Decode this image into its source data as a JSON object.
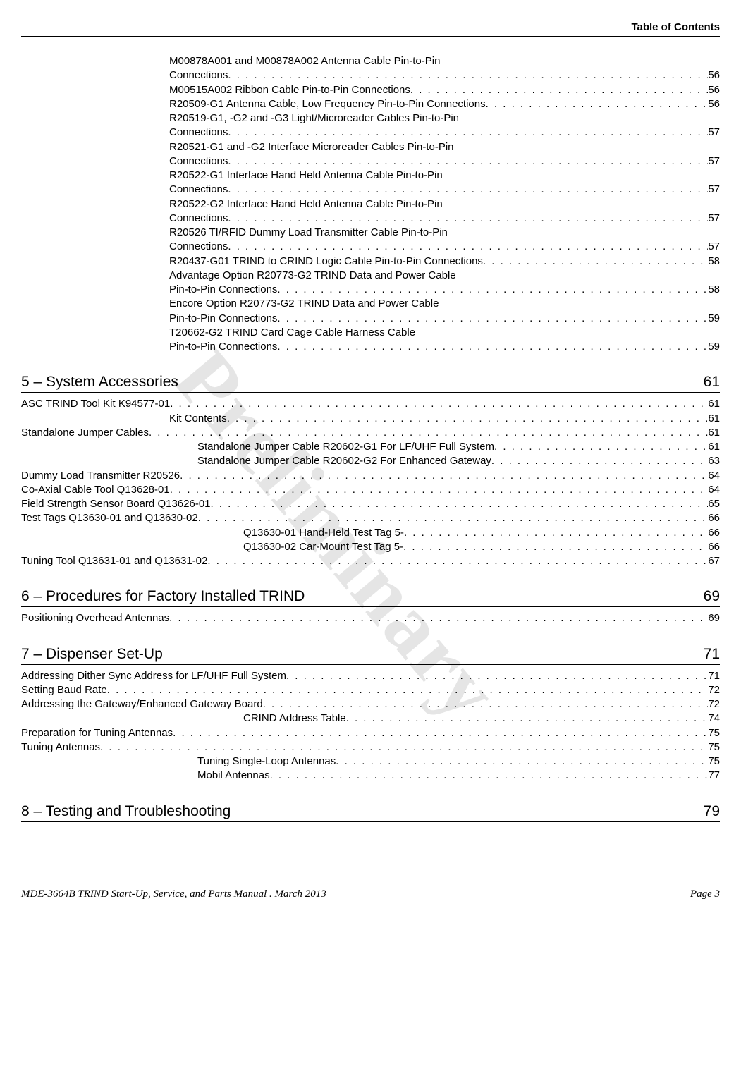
{
  "header": {
    "right": "Table of Contents"
  },
  "watermark": "Preliminary",
  "topEntries": [
    {
      "label": "M00878A001 and M00878A002 Antenna Cable Pin-to-Pin Connections",
      "page": "56",
      "wrap": true
    },
    {
      "label": "M00515A002 Ribbon Cable Pin-to-Pin Connections",
      "page": "56"
    },
    {
      "label": "R20509-G1 Antenna Cable, Low Frequency Pin-to-Pin Connections",
      "page": "56"
    },
    {
      "label": "R20519-G1, -G2 and -G3 Light/Microreader Cables Pin-to-Pin Connections",
      "page": "57",
      "wrap": true
    },
    {
      "label": "R20521-G1 and -G2 Interface Microreader Cables Pin-to-Pin Connections",
      "page": "57",
      "wrap": true
    },
    {
      "label": "R20522-G1 Interface Hand Held Antenna Cable Pin-to-Pin Connections",
      "page": "57",
      "wrap": true
    },
    {
      "label": "R20522-G2 Interface Hand Held Antenna Cable Pin-to-Pin Connections",
      "page": "57",
      "wrap": true
    },
    {
      "label": "R20526 TI/RFID Dummy Load Transmitter Cable Pin-to-Pin Connections",
      "page": "57",
      "wrap": true
    },
    {
      "label": "R20437-G01 TRIND to CRIND Logic Cable Pin-to-Pin Connections ",
      "page": "58"
    },
    {
      "label": "Advantage Option R20773-G2 TRIND Data and Power Cable Pin-to-Pin Connections ",
      "page": "58",
      "wrap": true
    },
    {
      "label": "Encore Option R20773-G2 TRIND Data and Power Cable Pin-to-Pin Connections ",
      "page": "59",
      "wrap": true
    },
    {
      "label": "T20662-G2 TRIND Card Cage Cable Harness Cable Pin-to-Pin Connections",
      "page": "59",
      "wrap": true
    }
  ],
  "sections": [
    {
      "title": "5 – System Accessories",
      "page": "61",
      "entries": [
        {
          "label": "ASC TRIND Tool Kit K94577-01",
          "page": "61",
          "indent": 0
        },
        {
          "label": "Kit Contents",
          "page": "61",
          "indent": 1
        },
        {
          "label": "Standalone Jumper Cables",
          "page": "61",
          "indent": 0
        },
        {
          "label": "Standalone Jumper Cable R20602-G1 For LF/UHF Full System ",
          "page": "61",
          "indent": 2
        },
        {
          "label": "Standalone Jumper Cable R20602-G2 For Enhanced Gateway",
          "page": "63",
          "indent": 2
        },
        {
          "label": "Dummy Load Transmitter R20526 ",
          "page": "64",
          "indent": 0
        },
        {
          "label": "Co-Axial Cable Tool Q13628-01",
          "page": "64",
          "indent": 0
        },
        {
          "label": "Field Strength Sensor Board Q13626-01 ",
          "page": "65",
          "indent": 0
        },
        {
          "label": "Test Tags Q13630-01 and Q13630-02",
          "page": "66",
          "indent": 0
        },
        {
          "label": "Q13630-01 Hand-Held Test Tag 5-",
          "page": "66",
          "indent": 3
        },
        {
          "label": "Q13630-02 Car-Mount Test Tag 5-",
          "page": "66",
          "indent": 3
        },
        {
          "label": "Tuning Tool Q13631-01 and Q13631-02",
          "page": "67",
          "indent": 0
        }
      ]
    },
    {
      "title": "6 – Procedures for Factory Installed TRIND",
      "page": "69",
      "entries": [
        {
          "label": "Positioning Overhead Antennas ",
          "page": "69",
          "indent": 0
        }
      ]
    },
    {
      "title": "7 – Dispenser Set-Up",
      "page": "71",
      "entries": [
        {
          "label": "Addressing Dither Sync Address for LF/UHF Full System ",
          "page": "71",
          "indent": 0
        },
        {
          "label": "Setting Baud Rate",
          "page": "72",
          "indent": 0
        },
        {
          "label": "Addressing the Gateway/Enhanced Gateway Board ",
          "page": "72",
          "indent": 0
        },
        {
          "label": "CRIND Address Table",
          "page": "74",
          "indent": 3
        },
        {
          "label": "Preparation for Tuning Antennas",
          "page": "75",
          "indent": 0
        },
        {
          "label": "Tuning Antennas",
          "page": "75",
          "indent": 0
        },
        {
          "label": "Tuning Single-Loop Antennas",
          "page": "75",
          "indent": 2
        },
        {
          "label": "Mobil Antennas ",
          "page": "77",
          "indent": 2
        }
      ]
    },
    {
      "title": "8 – Testing and Troubleshooting",
      "page": "79",
      "entries": []
    }
  ],
  "footer": {
    "left": "MDE-3664B TRIND Start-Up, Service, and Parts Manual . March 2013",
    "right": "Page 3"
  }
}
